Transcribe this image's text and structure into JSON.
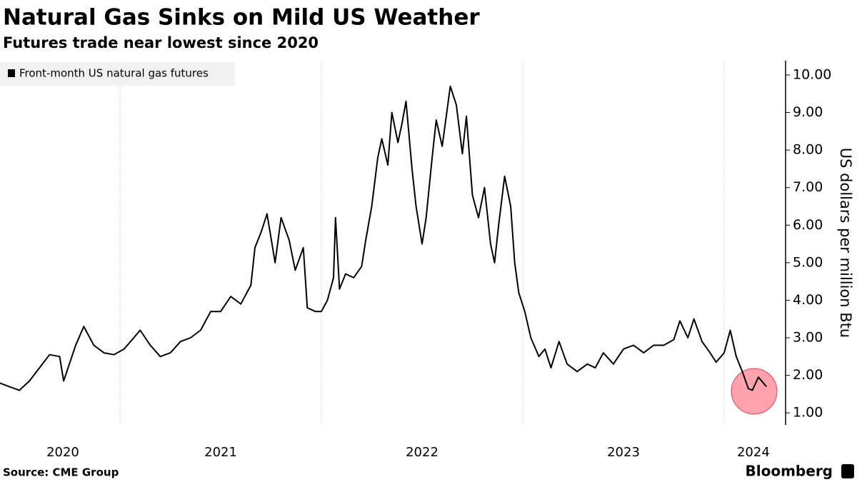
{
  "chart_data": {
    "type": "line",
    "title": "Natural Gas Sinks on Mild US Weather",
    "subtitle": "Futures trade near lowest since 2020",
    "y_label": "US dollars per million Btu",
    "source": "Source: CME Group",
    "brand": "Bloomberg",
    "x": [
      2020.4,
      2020.45,
      2020.5,
      2020.55,
      2020.6,
      2020.65,
      2020.7,
      2020.72,
      2020.78,
      2020.82,
      2020.87,
      2020.92,
      2020.97,
      2021.02,
      2021.1,
      2021.15,
      2021.2,
      2021.25,
      2021.3,
      2021.35,
      2021.4,
      2021.45,
      2021.5,
      2021.55,
      2021.6,
      2021.65,
      2021.67,
      2021.7,
      2021.73,
      2021.77,
      2021.8,
      2021.84,
      2021.87,
      2021.91,
      2021.93,
      2021.97,
      2022.0,
      2022.03,
      2022.06,
      2022.07,
      2022.09,
      2022.12,
      2022.16,
      2022.2,
      2022.22,
      2022.25,
      2022.28,
      2022.3,
      2022.33,
      2022.35,
      2022.38,
      2022.4,
      2022.42,
      2022.45,
      2022.47,
      2022.5,
      2022.52,
      2022.55,
      2022.57,
      2022.6,
      2022.63,
      2022.64,
      2022.67,
      2022.7,
      2022.72,
      2022.75,
      2022.78,
      2022.81,
      2022.84,
      2022.86,
      2022.88,
      2022.91,
      2022.94,
      2022.96,
      2022.98,
      2023.01,
      2023.04,
      2023.08,
      2023.11,
      2023.14,
      2023.18,
      2023.22,
      2023.27,
      2023.32,
      2023.36,
      2023.4,
      2023.45,
      2023.5,
      2023.55,
      2023.6,
      2023.65,
      2023.7,
      2023.75,
      2023.78,
      2023.82,
      2023.85,
      2023.89,
      2023.93,
      2023.96,
      2024.0,
      2024.03,
      2024.06,
      2024.09,
      2024.12,
      2024.14,
      2024.17,
      2024.21
    ],
    "series": [
      {
        "name": "Front-month US natural gas futures",
        "color": "#000000",
        "values": [
          1.8,
          1.7,
          1.6,
          1.85,
          2.2,
          2.55,
          2.5,
          1.85,
          2.8,
          3.3,
          2.8,
          2.6,
          2.55,
          2.7,
          3.2,
          2.8,
          2.5,
          2.6,
          2.9,
          3.0,
          3.2,
          3.7,
          3.7,
          4.1,
          3.9,
          4.4,
          5.4,
          5.8,
          6.3,
          5.0,
          6.2,
          5.6,
          4.8,
          5.4,
          3.8,
          3.7,
          3.7,
          4.0,
          4.6,
          6.2,
          4.3,
          4.7,
          4.6,
          4.9,
          5.6,
          6.5,
          7.8,
          8.3,
          7.6,
          9.0,
          8.2,
          8.7,
          9.3,
          7.5,
          6.5,
          5.5,
          6.2,
          7.8,
          8.8,
          8.1,
          9.3,
          9.7,
          9.2,
          7.9,
          8.9,
          6.8,
          6.2,
          7.0,
          5.5,
          5.0,
          6.0,
          7.3,
          6.5,
          5.0,
          4.2,
          3.7,
          3.0,
          2.5,
          2.7,
          2.2,
          2.9,
          2.3,
          2.1,
          2.3,
          2.2,
          2.6,
          2.3,
          2.7,
          2.8,
          2.6,
          2.8,
          2.8,
          2.95,
          3.45,
          3.0,
          3.5,
          2.9,
          2.6,
          2.35,
          2.6,
          3.2,
          2.5,
          2.1,
          1.65,
          1.6,
          1.95,
          1.7
        ]
      }
    ],
    "xlim": [
      2020.404,
      2024.305
    ],
    "xticks": [
      {
        "value": 2020.716,
        "label": "2020"
      },
      {
        "value": 2021.5,
        "label": "2021"
      },
      {
        "value": 2022.5,
        "label": "2022"
      },
      {
        "value": 2023.5,
        "label": "2023"
      },
      {
        "value": 2024.145,
        "label": "2024"
      }
    ],
    "xgrid": [
      2021,
      2022,
      2023,
      2024
    ],
    "ylim": [
      0.68,
      10.38
    ],
    "yticks": [
      {
        "value": 1,
        "label": "1.00"
      },
      {
        "value": 2,
        "label": "2.00"
      },
      {
        "value": 3,
        "label": "3.00"
      },
      {
        "value": 4,
        "label": "4.00"
      },
      {
        "value": 5,
        "label": "5.00"
      },
      {
        "value": 6,
        "label": "6.00"
      },
      {
        "value": 7,
        "label": "7.00"
      },
      {
        "value": 8,
        "label": "8.00"
      },
      {
        "value": 9,
        "label": "9.00"
      },
      {
        "value": 10,
        "label": "10.00"
      }
    ]
  }
}
